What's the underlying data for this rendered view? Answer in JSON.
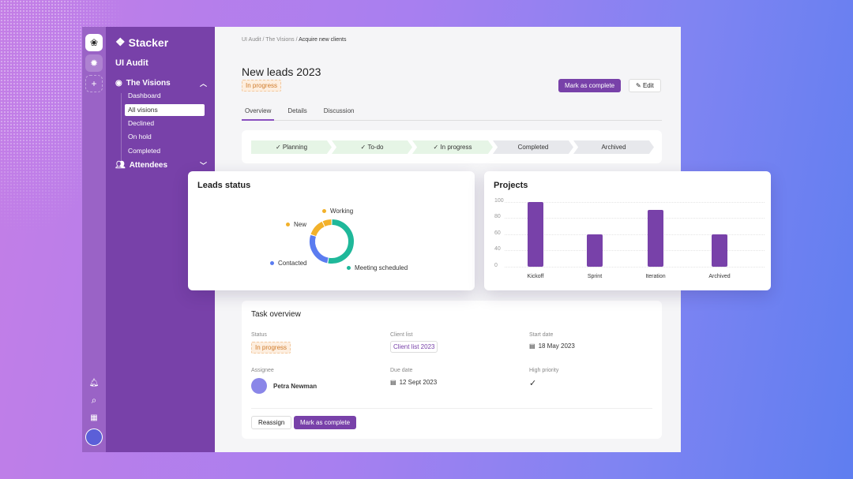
{
  "sidebar": {
    "brand": "Stacker",
    "workspace": "UI Audit",
    "groups": [
      {
        "label": "The Visions",
        "icon": "eye-icon",
        "expanded": true
      },
      {
        "label": "Attendees",
        "icon": "users-icon",
        "expanded": false
      }
    ],
    "items": [
      {
        "label": "Dashboard"
      },
      {
        "label": "All visions",
        "active": true
      },
      {
        "label": "Declined"
      },
      {
        "label": "On hold"
      },
      {
        "label": "Completed"
      }
    ]
  },
  "rail": {
    "icons": [
      "app-logo-icon",
      "workspace-icon",
      "plus-icon",
      "bell-icon",
      "search-icon",
      "building-icon",
      "avatar"
    ]
  },
  "breadcrumb": {
    "a": "UI Audit",
    "b": "The Visions",
    "c": "Acquire new clients",
    "sep": " / "
  },
  "header": {
    "title": "New leads 2023",
    "status": "In progress",
    "mark_complete": "Mark as complete",
    "edit": "Edit"
  },
  "tabs": [
    {
      "label": "Overview",
      "active": true
    },
    {
      "label": "Details"
    },
    {
      "label": "Discussion"
    }
  ],
  "pipeline": [
    {
      "label": "Planning",
      "done": true
    },
    {
      "label": "To-do",
      "done": true
    },
    {
      "label": "In progress",
      "done": true
    },
    {
      "label": "Completed",
      "done": false
    },
    {
      "label": "Archived",
      "done": false
    }
  ],
  "chart_data": [
    {
      "type": "pie",
      "title": "Leads status",
      "donut": true,
      "slices": [
        {
          "label": "Meeting scheduled",
          "value": 53,
          "color": "#1fb89a"
        },
        {
          "label": "Contacted",
          "value": 27,
          "color": "#5b7cf0"
        },
        {
          "label": "New",
          "value": 13,
          "color": "#f2b12a"
        },
        {
          "label": "Working",
          "value": 7,
          "color": "#f2b12a"
        }
      ]
    },
    {
      "type": "bar",
      "title": "Projects",
      "categories": [
        "Kickoff",
        "Sprint",
        "Iteration",
        "Archived"
      ],
      "values": [
        100,
        60,
        90,
        60
      ],
      "yticks": [
        0,
        40,
        60,
        80,
        100
      ],
      "ylim": [
        0,
        100
      ],
      "grid": true,
      "color": "#7841a9"
    }
  ],
  "task": {
    "title": "Task overview",
    "status_label": "Status",
    "status": "In progress",
    "client_label": "Client list",
    "client": "Client list 2023",
    "start_label": "Start date",
    "start": "18 May 2023",
    "assignee_label": "Assignee",
    "assignee": "Petra Newman",
    "due_label": "Due date",
    "due": "12 Sept 2023",
    "priority_label": "High priority",
    "priority": true,
    "reassign": "Reassign",
    "mark_complete": "Mark as complete"
  }
}
